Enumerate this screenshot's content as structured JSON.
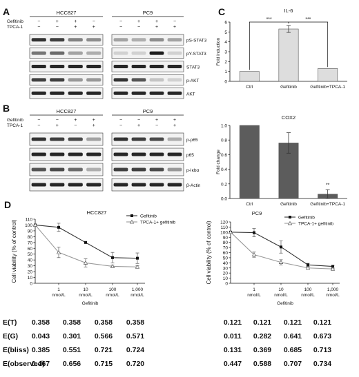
{
  "panel_letters": {
    "A": "A",
    "B": "B",
    "C": "C",
    "D": "D"
  },
  "panel_a": {
    "groups": [
      "HCC827",
      "PC9"
    ],
    "treatments": [
      {
        "label": "Gefitinib",
        "signs": [
          "−",
          "+",
          "+",
          "−"
        ]
      },
      {
        "label": "TPCA-1",
        "signs": [
          "−",
          "−",
          "+",
          "+"
        ]
      }
    ],
    "bands": [
      "pS-STAT3",
      "pY-STAT3",
      "STAT3",
      "p-AKT",
      "AKT"
    ]
  },
  "panel_b": {
    "groups": [
      "HCC827",
      "PC9"
    ],
    "treatments": [
      {
        "label": "Gefitinib",
        "signs": [
          "−",
          "−",
          "+",
          "+"
        ]
      },
      {
        "label": "TPCA-1",
        "signs": [
          "−",
          "+",
          "−",
          "+"
        ]
      }
    ],
    "bands": [
      "p-p65",
      "p65",
      "p-Iκbα",
      "β-Actin"
    ]
  },
  "chart_data": [
    {
      "type": "bar",
      "title": "IL-6",
      "ylabel": "Fold induction",
      "categories": [
        "Ctrl",
        "Gefitinib",
        "Gefitinib+TPCA-1"
      ],
      "values": [
        1.0,
        5.3,
        1.3
      ],
      "errors": [
        0,
        0.35,
        0
      ],
      "ylim": [
        0,
        6
      ],
      "yticks": [
        "0",
        "1",
        "2",
        "3",
        "4",
        "5",
        "6"
      ],
      "significance": [
        "***",
        "***"
      ],
      "bar_color": "#dddddd"
    },
    {
      "type": "bar",
      "title": "COX2",
      "ylabel": "Fold change",
      "categories": [
        "Ctrl",
        "Gefitinib",
        "Gefitinib+TPCA-1"
      ],
      "values": [
        1.0,
        0.76,
        0.06
      ],
      "errors": [
        0,
        0.14,
        0.06
      ],
      "ylim": [
        0,
        1.0
      ],
      "yticks": [
        "0.0",
        "0.2",
        "0.4",
        "0.6",
        "0.8",
        "1.0"
      ],
      "significance": [
        "**"
      ],
      "bar_color": "#5c5c5c"
    },
    {
      "type": "line",
      "title": "HCC827",
      "ylabel": "Cell viability (% of control)",
      "xlabel": "Gefitinib",
      "x": [
        "0",
        "1 nmol/L",
        "10 nmol/L",
        "100 nmol/L",
        "1,000 nmol/L"
      ],
      "xtick_labels": [
        [
          "1",
          "nmol/L"
        ],
        [
          "10",
          "nmol/L"
        ],
        [
          "100",
          "nmol/L"
        ],
        [
          "1,000",
          "nmol/L"
        ]
      ],
      "ylim": [
        0,
        110
      ],
      "yticks": [
        "0",
        "10",
        "20",
        "30",
        "40",
        "50",
        "60",
        "70",
        "80",
        "90",
        "100",
        "110"
      ],
      "series": [
        {
          "name": "Gefitinib",
          "values": [
            100,
            96,
            70,
            44,
            43
          ],
          "errors": [
            0,
            7,
            0,
            9,
            9
          ]
        },
        {
          "name": "TPCA-1+ gefitinib",
          "values": [
            100,
            53,
            35,
            29,
            28
          ],
          "errors": [
            0,
            9,
            7,
            2,
            2
          ]
        }
      ]
    },
    {
      "type": "line",
      "title": "PC9",
      "ylabel": "Cell viability (% of control)",
      "xlabel": "Gefitinib",
      "x": [
        "0",
        "1 nmol/L",
        "10 nmol/L",
        "100 nmol/L",
        "1,000 nmol/L"
      ],
      "xtick_labels": [
        [
          "1",
          "nmol/L"
        ],
        [
          "10",
          "nmol/L"
        ],
        [
          "100",
          "nmol/L"
        ],
        [
          "1,000",
          "nmol/L"
        ]
      ],
      "ylim": [
        0,
        120
      ],
      "yticks": [
        "0",
        "10",
        "20",
        "30",
        "40",
        "50",
        "60",
        "70",
        "80",
        "90",
        "100",
        "110",
        "120"
      ],
      "series": [
        {
          "name": "Gefitinib",
          "values": [
            100,
            99,
            71,
            36,
            33
          ],
          "errors": [
            0,
            8,
            12,
            3,
            2
          ]
        },
        {
          "name": "TPCA-1+ gefitinib",
          "values": [
            100,
            56,
            41,
            30,
            28
          ],
          "errors": [
            0,
            5,
            5,
            2,
            1
          ]
        }
      ]
    }
  ],
  "table": {
    "row_labels": [
      "E(T)",
      "E(G)",
      "E(bliss)",
      "E(observed)"
    ],
    "hcc827": [
      [
        "0.358",
        "0.358",
        "0.358",
        "0.358"
      ],
      [
        "0.043",
        "0.301",
        "0.566",
        "0.571"
      ],
      [
        "0.385",
        "0.551",
        "0.721",
        "0.724"
      ],
      [
        "0.467",
        "0.656",
        "0.715",
        "0.720"
      ]
    ],
    "pc9": [
      [
        "0.121",
        "0.121",
        "0.121",
        "0.121"
      ],
      [
        "0.011",
        "0.282",
        "0.641",
        "0.673"
      ],
      [
        "0.131",
        "0.369",
        "0.685",
        "0.713"
      ],
      [
        "0.447",
        "0.588",
        "0.707",
        "0.734"
      ]
    ]
  }
}
